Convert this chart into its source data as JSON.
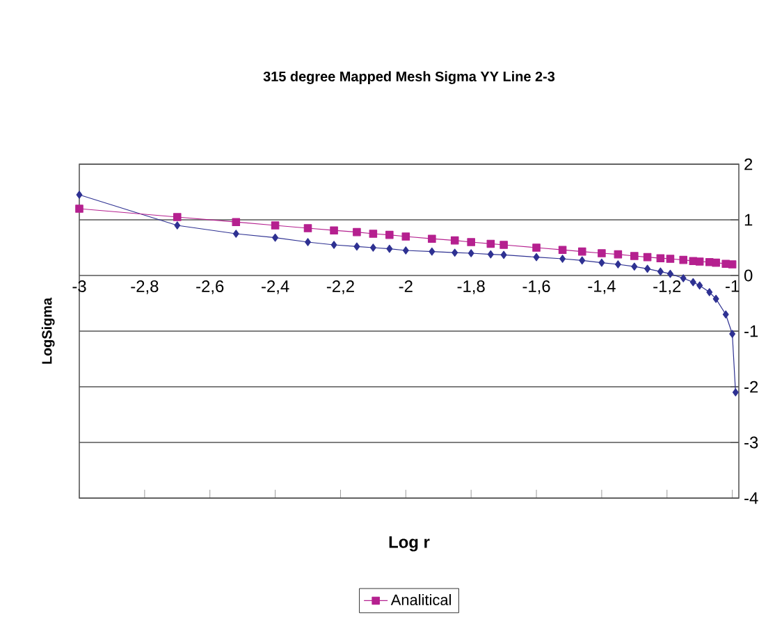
{
  "chart_data": {
    "type": "line",
    "title": "315 degree Mapped Mesh Sigma YY Line 2-3",
    "xlabel": "Log r",
    "ylabel": "LogSigma",
    "xlim": [
      -3,
      -0.98
    ],
    "xticks": [
      {
        "value": -3,
        "label": "-3"
      },
      {
        "value": -2.8,
        "label": "-2,8"
      },
      {
        "value": -2.6,
        "label": "-2,6"
      },
      {
        "value": -2.4,
        "label": "-2,4"
      },
      {
        "value": -2.2,
        "label": "-2,2"
      },
      {
        "value": -2,
        "label": "-2"
      },
      {
        "value": -1.8,
        "label": "-1,8"
      },
      {
        "value": -1.6,
        "label": "-1,6"
      },
      {
        "value": -1.4,
        "label": "-1,4"
      },
      {
        "value": -1.2,
        "label": "-1,2"
      },
      {
        "value": -1,
        "label": "-1"
      }
    ],
    "ylim": [
      -4,
      2
    ],
    "yticks": [
      -4,
      -3,
      -2,
      -1,
      0,
      1,
      2
    ],
    "grid": "y",
    "legend": "bottom",
    "series": [
      {
        "color": "#2e3192",
        "marker": "diamond",
        "x": [
          -3,
          -2.7,
          -2.52,
          -2.4,
          -2.3,
          -2.22,
          -2.15,
          -2.1,
          -2.05,
          -2,
          -1.92,
          -1.85,
          -1.8,
          -1.74,
          -1.7,
          -1.6,
          -1.52,
          -1.46,
          -1.4,
          -1.35,
          -1.3,
          -1.26,
          -1.22,
          -1.19,
          -1.15,
          -1.12,
          -1.1,
          -1.07,
          -1.05,
          -1.02,
          -1,
          -0.99
        ],
        "values": [
          1.45,
          0.9,
          0.75,
          0.68,
          0.6,
          0.55,
          0.52,
          0.5,
          0.48,
          0.45,
          0.43,
          0.41,
          0.4,
          0.38,
          0.37,
          0.33,
          0.3,
          0.27,
          0.23,
          0.2,
          0.16,
          0.12,
          0.07,
          0.03,
          -0.05,
          -0.12,
          -0.18,
          -0.3,
          -0.42,
          -0.7,
          -1.05,
          -2.1
        ]
      },
      {
        "name": "Analitical",
        "color": "#b5208f",
        "marker": "square",
        "x": [
          -3,
          -2.7,
          -2.52,
          -2.4,
          -2.3,
          -2.22,
          -2.15,
          -2.1,
          -2.05,
          -2,
          -1.92,
          -1.85,
          -1.8,
          -1.74,
          -1.7,
          -1.6,
          -1.52,
          -1.46,
          -1.4,
          -1.35,
          -1.3,
          -1.26,
          -1.22,
          -1.19,
          -1.15,
          -1.12,
          -1.1,
          -1.07,
          -1.05,
          -1.02,
          -1
        ],
        "values": [
          1.2,
          1.05,
          0.96,
          0.9,
          0.85,
          0.81,
          0.78,
          0.75,
          0.73,
          0.7,
          0.66,
          0.63,
          0.6,
          0.57,
          0.55,
          0.5,
          0.46,
          0.43,
          0.4,
          0.38,
          0.35,
          0.33,
          0.31,
          0.3,
          0.28,
          0.26,
          0.25,
          0.24,
          0.23,
          0.21,
          0.2
        ]
      }
    ]
  }
}
